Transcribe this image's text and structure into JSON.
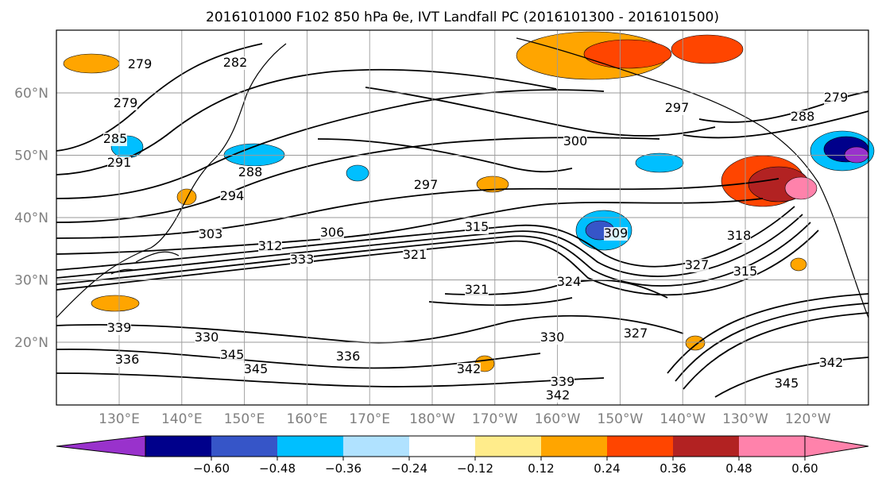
{
  "figure": {
    "title": "2016101000 F102 850 hPa θe, IVT Landfall PC (2016101300 - 2016101500)"
  },
  "map": {
    "lon_ticks": [
      "130°E",
      "140°E",
      "150°E",
      "160°E",
      "170°E",
      "180°W",
      "170°W",
      "160°W",
      "150°W",
      "140°W",
      "130°W",
      "120°W"
    ],
    "lat_ticks": [
      "60°N",
      "50°N",
      "40°N",
      "30°N",
      "20°N"
    ],
    "gridlines": true,
    "contour_labels": [
      "279",
      "282",
      "279",
      "285",
      "291",
      "288",
      "294",
      "303",
      "306",
      "312",
      "315",
      "297",
      "300",
      "297",
      "279",
      "288",
      "309",
      "327",
      "318",
      "315",
      "324",
      "321",
      "330",
      "333",
      "336",
      "339",
      "342",
      "345",
      "339",
      "342",
      "345",
      "342",
      "345",
      "327",
      "321",
      "330",
      "336"
    ]
  },
  "colorbar": {
    "ticks": [
      "−0.60",
      "−0.48",
      "−0.36",
      "−0.24",
      "−0.12",
      "0.12",
      "0.24",
      "0.36",
      "0.48",
      "0.60"
    ],
    "colors": [
      "#9932cc",
      "#00008b",
      "#3655c8",
      "#00bfff",
      "#b0e2ff",
      "#ffffff",
      "#ffec8b",
      "#ffa500",
      "#ff4500",
      "#b22222",
      "#ff82ab",
      "#ff82ab"
    ],
    "extend": "both"
  }
}
